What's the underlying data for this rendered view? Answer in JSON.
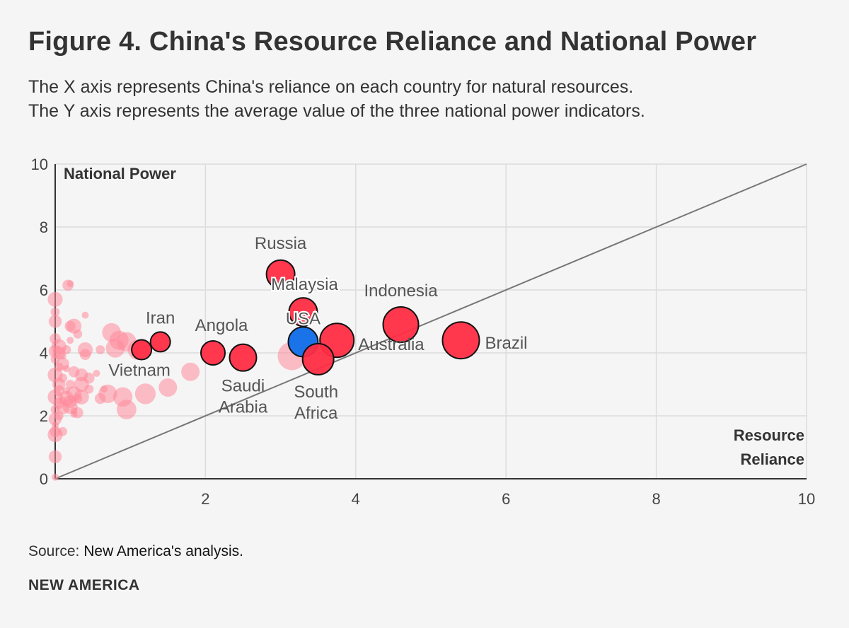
{
  "header": {
    "title": "Figure 4. China's Resource Reliance and National Power",
    "subtitle_line1": "The X axis represents China's reliance on each country for natural resources.",
    "subtitle_line2": "The Y axis represents the average value of the three national power indicators."
  },
  "footer": {
    "source_prefix": "Source: ",
    "source_text": "New America's analysis.",
    "brand": "NEW AMERICA"
  },
  "colors": {
    "highlight": "#ff2d45",
    "background_point": "#ff8a9a",
    "usa": "#1a73e8",
    "diagonal": "#777777",
    "grid": "#dcdcdc",
    "axis": "#333333"
  },
  "chart_data": {
    "type": "scatter",
    "xlabel": "Resource Reliance",
    "ylabel": "National Power",
    "xlim": [
      0,
      10
    ],
    "ylim": [
      0,
      10
    ],
    "x_ticks": [
      "2",
      "4",
      "6",
      "8",
      "10"
    ],
    "y_ticks": [
      "0",
      "2",
      "4",
      "6",
      "8",
      "10"
    ],
    "grid": true,
    "reference_line": {
      "from": [
        0,
        0
      ],
      "to": [
        10,
        10
      ]
    },
    "highlighted": [
      {
        "name": "Russia",
        "x": 3.0,
        "y": 6.5
      },
      {
        "name": "Malaysia",
        "x": 3.3,
        "y": 5.3
      },
      {
        "name": "USA",
        "x": 3.3,
        "y": 4.35
      },
      {
        "name": "Iran",
        "x": 1.4,
        "y": 4.35
      },
      {
        "name": "Vietnam",
        "x": 1.15,
        "y": 4.1
      },
      {
        "name": "Angola",
        "x": 2.1,
        "y": 4.0
      },
      {
        "name": "Saudi Arabia",
        "x": 2.5,
        "y": 3.85
      },
      {
        "name": "South Africa",
        "x": 3.5,
        "y": 3.8
      },
      {
        "name": "Australia",
        "x": 3.75,
        "y": 4.4
      },
      {
        "name": "Indonesia",
        "x": 4.6,
        "y": 4.9
      },
      {
        "name": "Brazil",
        "x": 5.4,
        "y": 4.4
      }
    ],
    "others": [
      {
        "x": 0.2,
        "y": 6.2
      },
      {
        "x": 0.17,
        "y": 6.15
      },
      {
        "x": 0.0,
        "y": 5.7
      },
      {
        "x": 0.0,
        "y": 5.3
      },
      {
        "x": 0.0,
        "y": 5.0
      },
      {
        "x": 0.4,
        "y": 5.2
      },
      {
        "x": 0.2,
        "y": 4.85
      },
      {
        "x": 0.25,
        "y": 4.85
      },
      {
        "x": 0.3,
        "y": 4.6
      },
      {
        "x": 0.75,
        "y": 4.65
      },
      {
        "x": 0.2,
        "y": 4.4
      },
      {
        "x": 0.0,
        "y": 4.45
      },
      {
        "x": 0.05,
        "y": 4.2
      },
      {
        "x": 0.15,
        "y": 4.1
      },
      {
        "x": 0.05,
        "y": 4.0
      },
      {
        "x": 0.1,
        "y": 3.9
      },
      {
        "x": 0.4,
        "y": 3.95
      },
      {
        "x": 0.4,
        "y": 4.1
      },
      {
        "x": 0.6,
        "y": 4.1
      },
      {
        "x": 0.8,
        "y": 4.15
      },
      {
        "x": 0.85,
        "y": 4.4
      },
      {
        "x": 0.95,
        "y": 4.35
      },
      {
        "x": 1.1,
        "y": 4.1
      },
      {
        "x": 0.0,
        "y": 3.8
      },
      {
        "x": 0.1,
        "y": 3.65
      },
      {
        "x": 0.15,
        "y": 3.5
      },
      {
        "x": 0.25,
        "y": 3.4
      },
      {
        "x": 0.0,
        "y": 3.3
      },
      {
        "x": 0.1,
        "y": 3.2
      },
      {
        "x": 0.35,
        "y": 3.3
      },
      {
        "x": 0.55,
        "y": 3.35
      },
      {
        "x": 0.45,
        "y": 3.2
      },
      {
        "x": 0.35,
        "y": 3.0
      },
      {
        "x": 0.2,
        "y": 3.0
      },
      {
        "x": 0.05,
        "y": 3.0
      },
      {
        "x": 0.15,
        "y": 2.8
      },
      {
        "x": 0.05,
        "y": 2.8
      },
      {
        "x": 0.25,
        "y": 2.7
      },
      {
        "x": 0.45,
        "y": 2.85
      },
      {
        "x": 0.7,
        "y": 2.7
      },
      {
        "x": 0.65,
        "y": 2.85
      },
      {
        "x": 0.6,
        "y": 2.55
      },
      {
        "x": 0.35,
        "y": 2.6
      },
      {
        "x": 0.3,
        "y": 2.55
      },
      {
        "x": 0.2,
        "y": 2.45
      },
      {
        "x": 0.1,
        "y": 2.5
      },
      {
        "x": 0.05,
        "y": 2.4
      },
      {
        "x": 0.0,
        "y": 2.6
      },
      {
        "x": 0.0,
        "y": 2.2
      },
      {
        "x": 0.1,
        "y": 2.25
      },
      {
        "x": 0.25,
        "y": 2.15
      },
      {
        "x": 0.3,
        "y": 2.1
      },
      {
        "x": 0.2,
        "y": 2.3
      },
      {
        "x": 0.05,
        "y": 2.0
      },
      {
        "x": 0.0,
        "y": 1.9
      },
      {
        "x": 0.0,
        "y": 1.7
      },
      {
        "x": 0.0,
        "y": 1.5
      },
      {
        "x": 0.0,
        "y": 1.4
      },
      {
        "x": 0.1,
        "y": 1.5
      },
      {
        "x": 0.0,
        "y": 0.7
      },
      {
        "x": 0.0,
        "y": 0.05
      },
      {
        "x": 0.9,
        "y": 2.6
      },
      {
        "x": 0.95,
        "y": 2.2
      },
      {
        "x": 1.2,
        "y": 2.7
      },
      {
        "x": 1.5,
        "y": 2.9
      },
      {
        "x": 1.8,
        "y": 3.4
      },
      {
        "x": 3.15,
        "y": 3.9
      },
      {
        "x": 0.15,
        "y": 2.55
      },
      {
        "x": 0.05,
        "y": 3.55
      },
      {
        "x": 0.0,
        "y": 4.05
      },
      {
        "x": 0.25,
        "y": 2.05
      }
    ]
  }
}
